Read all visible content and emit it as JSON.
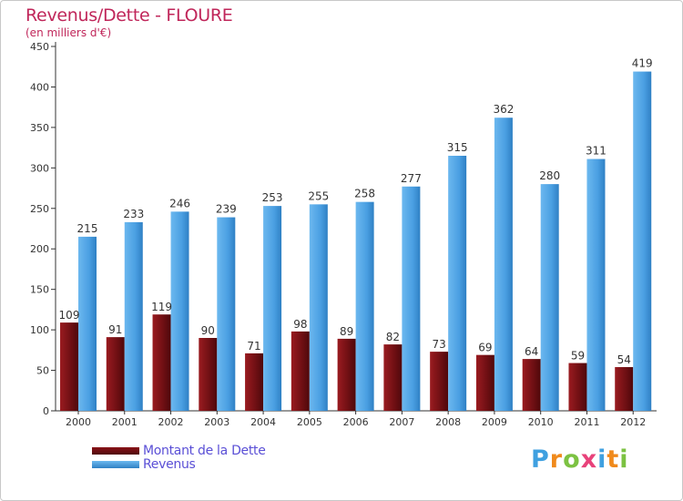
{
  "title": "Revenus/Dette - FLOURE",
  "subtitle": "(en milliers d'€)",
  "colors": {
    "title": "#c0265a",
    "debt": "#7a1216",
    "revenue": "#4ea3e4",
    "axis": "#333333",
    "legend_text": "#5a4fd6"
  },
  "legend": {
    "debt_label": "Montant de la Dette",
    "revenue_label": "Revenus"
  },
  "logo": {
    "letters": [
      "P",
      "r",
      "o",
      "x",
      "i",
      "t",
      "i"
    ],
    "colors": [
      "#3fa0e0",
      "#f08a1c",
      "#7cc242",
      "#e8427a",
      "#3fa0e0",
      "#f08a1c",
      "#7cc242"
    ]
  },
  "chart_data": {
    "type": "bar",
    "title": "Revenus/Dette - FLOURE",
    "ylabel": "(en milliers d'€)",
    "xlabel": "",
    "ylim": [
      0,
      450
    ],
    "yticks": [
      0,
      50,
      100,
      150,
      200,
      250,
      300,
      350,
      400,
      450
    ],
    "grid": false,
    "legend_position": "bottom-left",
    "categories": [
      "2000",
      "2001",
      "2002",
      "2003",
      "2004",
      "2005",
      "2006",
      "2007",
      "2008",
      "2009",
      "2010",
      "2011",
      "2012"
    ],
    "series": [
      {
        "name": "Montant de la Dette",
        "color": "#7a1216",
        "values": [
          109,
          91,
          119,
          90,
          71,
          98,
          89,
          82,
          73,
          69,
          64,
          59,
          54
        ]
      },
      {
        "name": "Revenus",
        "color": "#4ea3e4",
        "values": [
          215,
          233,
          246,
          239,
          253,
          255,
          258,
          277,
          315,
          362,
          280,
          311,
          419
        ]
      }
    ]
  }
}
